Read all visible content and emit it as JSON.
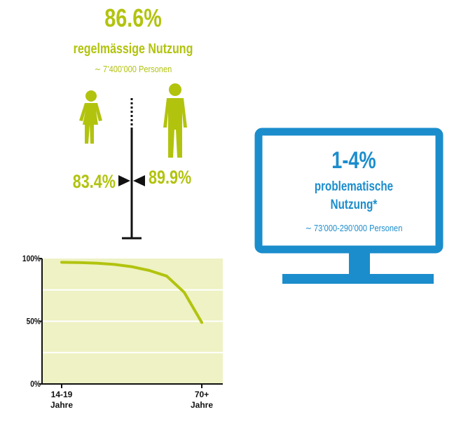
{
  "headline": {
    "value": "86.6%",
    "label": "regelmässige Nutzung",
    "persons": "∼ 7’400’000 Personen"
  },
  "women": "83.4%",
  "men": "89.9%",
  "monitor": {
    "value": "1-4%",
    "label": "problematische",
    "label2": "Nutzung*",
    "persons": "∼ 73’000-290’000 Personen"
  },
  "chart_data": {
    "type": "line",
    "categories": [
      "14-19\nJahre",
      null,
      null,
      null,
      null,
      null,
      null,
      null,
      "70+\nJahre"
    ],
    "series": [
      {
        "color": "#b2c30e",
        "values": [
          97,
          96.8,
          96.3,
          95.3,
          93.5,
          90.5,
          86,
          73,
          49
        ]
      }
    ],
    "ylim": [
      0,
      100
    ],
    "yticks": [
      {
        "value": 0,
        "label": "0%"
      },
      {
        "value": 50,
        "label": "50%"
      },
      {
        "value": 100,
        "label": "100%"
      }
    ],
    "grid_values": [
      25,
      50,
      75
    ],
    "background": "#eef2c4"
  }
}
